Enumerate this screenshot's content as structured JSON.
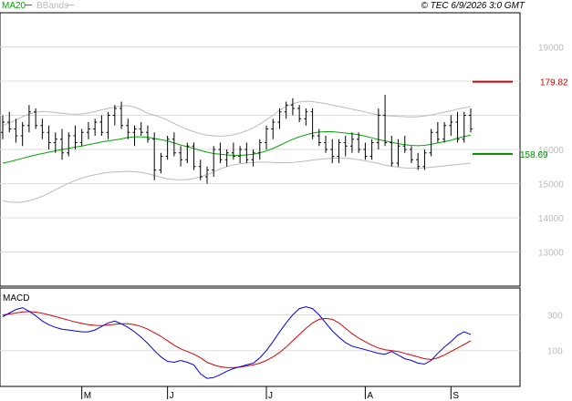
{
  "header": {
    "legend_ma": "MA20",
    "legend_bb": "BBands",
    "timestamp": "© TEC 6/9/2026 3:0 GMT"
  },
  "colors": {
    "price": "#000000",
    "ma": "#00aa00",
    "bbands": "#bbbbbb",
    "macd": "#0000ee",
    "signal": "#dd0000",
    "grid": "#dddddd",
    "resistance": "#cc0000",
    "support": "#008800"
  },
  "chart_data": [
    {
      "type": "ohlc",
      "x_labels": [
        "M",
        "J",
        "J",
        "A",
        "S"
      ],
      "x_label_positions": [
        12,
        25,
        40,
        55,
        68
      ],
      "ylim": [
        120,
        200
      ],
      "yticks": [
        130,
        140,
        150,
        160,
        170,
        180,
        190
      ],
      "y_tick_labels": [
        "13000",
        "14000",
        "15000",
        "16000",
        "",
        "",
        "19000"
      ],
      "resistance": 179.82,
      "resistance_label": "179.82",
      "support": 158.69,
      "support_label": "158.69",
      "ohlc": [
        [
          165,
          170,
          163,
          168
        ],
        [
          168,
          171,
          165,
          166
        ],
        [
          166,
          169,
          162,
          164
        ],
        [
          164,
          168,
          161,
          167
        ],
        [
          167,
          173,
          165,
          171
        ],
        [
          171,
          172,
          166,
          167
        ],
        [
          167,
          169,
          163,
          165
        ],
        [
          165,
          167,
          160,
          162
        ],
        [
          162,
          165,
          159,
          163
        ],
        [
          163,
          166,
          157,
          159
        ],
        [
          159,
          165,
          158,
          164
        ],
        [
          164,
          167,
          160,
          162
        ],
        [
          162,
          166,
          161,
          165
        ],
        [
          165,
          168,
          163,
          166
        ],
        [
          166,
          169,
          164,
          168
        ],
        [
          168,
          170,
          164,
          165
        ],
        [
          165,
          171,
          163,
          170
        ],
        [
          170,
          173,
          167,
          172
        ],
        [
          172,
          174,
          166,
          167
        ],
        [
          167,
          169,
          163,
          165
        ],
        [
          165,
          167,
          161,
          166
        ],
        [
          166,
          168,
          164,
          165
        ],
        [
          165,
          167,
          162,
          163
        ],
        [
          163,
          165,
          151,
          154
        ],
        [
          154,
          159,
          153,
          158
        ],
        [
          158,
          164,
          157,
          163
        ],
        [
          163,
          165,
          158,
          159
        ],
        [
          159,
          161,
          155,
          157
        ],
        [
          157,
          162,
          156,
          161
        ],
        [
          161,
          162,
          154,
          155
        ],
        [
          155,
          157,
          151,
          152
        ],
        [
          152,
          155,
          150,
          154
        ],
        [
          154,
          161,
          152,
          160
        ],
        [
          160,
          162,
          156,
          157
        ],
        [
          157,
          160,
          155,
          159
        ],
        [
          159,
          162,
          157,
          158
        ],
        [
          158,
          161,
          156,
          160
        ],
        [
          160,
          162,
          156,
          157
        ],
        [
          157,
          160,
          155,
          159
        ],
        [
          159,
          163,
          157,
          162
        ],
        [
          162,
          167,
          160,
          166
        ],
        [
          166,
          169,
          163,
          168
        ],
        [
          168,
          172,
          166,
          171
        ],
        [
          171,
          174,
          169,
          173
        ],
        [
          173,
          175,
          170,
          172
        ],
        [
          172,
          173,
          168,
          169
        ],
        [
          169,
          172,
          167,
          171
        ],
        [
          171,
          172,
          163,
          164
        ],
        [
          164,
          166,
          161,
          162
        ],
        [
          162,
          164,
          159,
          160
        ],
        [
          160,
          163,
          156,
          158
        ],
        [
          158,
          163,
          156,
          162
        ],
        [
          162,
          164,
          158,
          161
        ],
        [
          161,
          165,
          159,
          163
        ],
        [
          163,
          165,
          159,
          160
        ],
        [
          160,
          162,
          157,
          158
        ],
        [
          158,
          163,
          157,
          162
        ],
        [
          162,
          172,
          160,
          170
        ],
        [
          170,
          176,
          161,
          162
        ],
        [
          162,
          164,
          155,
          156
        ],
        [
          156,
          163,
          155,
          161
        ],
        [
          161,
          164,
          159,
          160
        ],
        [
          160,
          161,
          156,
          157
        ],
        [
          157,
          159,
          154,
          155
        ],
        [
          155,
          160,
          154,
          159
        ],
        [
          159,
          166,
          158,
          165
        ],
        [
          165,
          168,
          162,
          163
        ],
        [
          163,
          168,
          162,
          167
        ],
        [
          167,
          170,
          164,
          168
        ],
        [
          168,
          171,
          162,
          163
        ],
        [
          163,
          171,
          162,
          170
        ],
        [
          170,
          172,
          165,
          166
        ]
      ],
      "ma20": [
        156,
        156.4,
        156.9,
        157.4,
        157.9,
        158.4,
        158.8,
        159.2,
        159.6,
        160,
        160.3,
        160.7,
        161,
        161.4,
        161.8,
        162.2,
        162.5,
        162.8,
        163.1,
        163.5,
        163.7,
        163.7,
        163.6,
        163.2,
        162.9,
        162.5,
        161.9,
        161.3,
        160.8,
        160.3,
        159.7,
        159.2,
        158.8,
        158.6,
        158.4,
        158.3,
        158.3,
        158.4,
        158.6,
        159,
        159.6,
        160.3,
        161.2,
        162.1,
        163,
        163.7,
        164.3,
        164.8,
        165.1,
        165.2,
        165.2,
        165,
        164.8,
        164.6,
        164.3,
        163.9,
        163.4,
        162.9,
        162.5,
        162.1,
        161.7,
        161.4,
        161.2,
        161.1,
        161.2,
        161.5,
        161.9,
        162.3,
        162.7,
        163.3,
        163.8,
        164.2
      ],
      "bb_upper": [
        167,
        167.8,
        168.6,
        169.6,
        170.4,
        170.9,
        171.1,
        171,
        170.8,
        170.6,
        170.4,
        170.3,
        170.4,
        170.7,
        171.1,
        171.6,
        172,
        172.4,
        172.8,
        172.8,
        172.4,
        171.6,
        170.6,
        170,
        169.4,
        168.6,
        167.6,
        166.7,
        165.9,
        165.2,
        164.6,
        164.2,
        164,
        163.9,
        164,
        164.3,
        164.8,
        165.5,
        166.3,
        167.4,
        168.7,
        170,
        171.5,
        172.6,
        173.4,
        173.9,
        174.1,
        174,
        173.7,
        173.4,
        173,
        172.6,
        172.2,
        171.8,
        171.4,
        171,
        170.5,
        170.1,
        169.9,
        169.8,
        169.7,
        169.6,
        169.5,
        169.6,
        169.8,
        170.1,
        170.5,
        170.9,
        171.3,
        171.8,
        172.2,
        172.6
      ],
      "bb_lower": [
        145,
        144.6,
        144.5,
        144.6,
        145,
        145.6,
        146.3,
        147.2,
        148.2,
        149.2,
        150.1,
        150.9,
        151.6,
        152.2,
        152.6,
        153,
        153.3,
        153.4,
        153.5,
        153.6,
        153.5,
        153.3,
        152.9,
        152.4,
        151.9,
        151.4,
        151.2,
        151.1,
        151.2,
        151.5,
        152,
        152.7,
        153.5,
        154.3,
        155,
        155.5,
        155.8,
        156,
        156.2,
        156.3,
        156.3,
        156.2,
        156.1,
        156.1,
        156.2,
        156.4,
        156.6,
        156.9,
        157.1,
        157.3,
        157.4,
        157.5,
        157.4,
        157.3,
        157,
        156.7,
        156.3,
        155.9,
        155.4,
        155.1,
        154.8,
        154.6,
        154.5,
        154.5,
        154.6,
        154.8,
        155,
        155.2,
        155.4,
        155.6,
        155.8,
        156
      ],
      "title": "",
      "legend": [
        "MA20",
        "BBands"
      ]
    },
    {
      "type": "line",
      "title": "MACD",
      "ylim": [
        -100,
        450
      ],
      "yticks": [
        100,
        300
      ],
      "y_tick_labels": [
        "100",
        "300"
      ],
      "series": [
        {
          "name": "MACD",
          "values": [
            290,
            310,
            330,
            340,
            320,
            295,
            265,
            245,
            230,
            220,
            215,
            210,
            205,
            205,
            215,
            235,
            255,
            265,
            250,
            230,
            205,
            175,
            140,
            100,
            65,
            40,
            35,
            45,
            35,
            20,
            -30,
            -55,
            -50,
            -35,
            -15,
            0,
            10,
            20,
            30,
            60,
            100,
            150,
            205,
            255,
            300,
            335,
            345,
            335,
            300,
            255,
            210,
            175,
            145,
            125,
            115,
            105,
            95,
            85,
            80,
            95,
            75,
            55,
            45,
            30,
            25,
            45,
            85,
            120,
            150,
            185,
            205,
            190
          ]
        },
        {
          "name": "Signal",
          "values": [
            300,
            305,
            310,
            316,
            318,
            315,
            309,
            300,
            290,
            280,
            270,
            260,
            252,
            245,
            241,
            240,
            243,
            247,
            250,
            250,
            245,
            235,
            220,
            200,
            180,
            155,
            130,
            110,
            95,
            80,
            60,
            35,
            20,
            10,
            5,
            5,
            8,
            14,
            20,
            30,
            45,
            65,
            90,
            120,
            155,
            190,
            225,
            255,
            275,
            280,
            275,
            255,
            225,
            195,
            170,
            150,
            130,
            115,
            105,
            100,
            95,
            85,
            75,
            65,
            55,
            50,
            60,
            75,
            95,
            115,
            135,
            155
          ]
        }
      ]
    }
  ]
}
